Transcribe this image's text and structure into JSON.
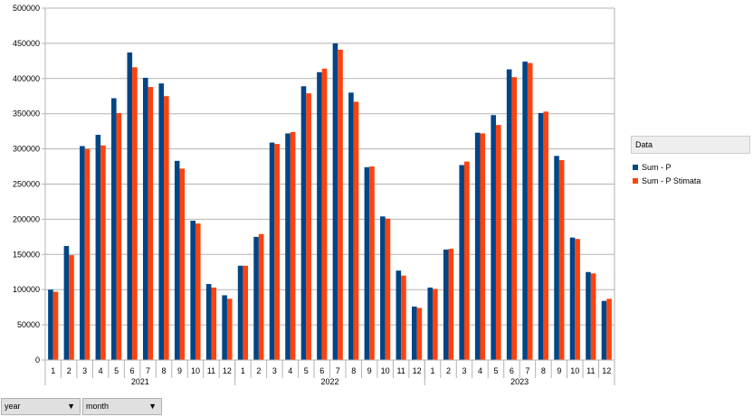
{
  "chart_data": {
    "type": "bar",
    "title": "",
    "xlabel": "",
    "ylabel": "",
    "ylim": [
      0,
      500000
    ],
    "y_ticks": [
      0,
      50000,
      100000,
      150000,
      200000,
      250000,
      300000,
      350000,
      400000,
      450000,
      500000
    ],
    "grid": true,
    "legend_position": "right",
    "legend_title": "Data",
    "groups": [
      {
        "label": "2021",
        "categories": [
          "1",
          "2",
          "3",
          "4",
          "5",
          "6",
          "7",
          "8",
          "9",
          "10",
          "11",
          "12"
        ]
      },
      {
        "label": "2022",
        "categories": [
          "1",
          "2",
          "3",
          "4",
          "5",
          "6",
          "7",
          "8",
          "9",
          "10",
          "11",
          "12"
        ]
      },
      {
        "label": "2023",
        "categories": [
          "1",
          "2",
          "3",
          "4",
          "5",
          "6",
          "7",
          "8",
          "9",
          "10",
          "11",
          "12"
        ]
      }
    ],
    "series": [
      {
        "name": "Sum - P",
        "color": "#004586",
        "values": [
          100000,
          162000,
          304000,
          320000,
          372000,
          437000,
          401000,
          393000,
          283000,
          198000,
          108000,
          92000,
          134000,
          175000,
          309000,
          322000,
          389000,
          409000,
          450000,
          380000,
          274000,
          204000,
          127000,
          76000,
          103000,
          157000,
          277000,
          323000,
          348000,
          413000,
          424000,
          351000,
          290000,
          174000,
          125000,
          84000
        ]
      },
      {
        "name": "Sum - P Stimata",
        "color": "#ff420e",
        "values": [
          97000,
          149000,
          300000,
          305000,
          351000,
          416000,
          388000,
          375000,
          272000,
          194000,
          103000,
          87000,
          134000,
          179000,
          307000,
          324000,
          379000,
          414000,
          441000,
          367000,
          275000,
          201000,
          120000,
          74000,
          101000,
          158000,
          282000,
          322000,
          334000,
          402000,
          422000,
          353000,
          284000,
          172000,
          123000,
          87000
        ]
      }
    ]
  },
  "field_buttons": [
    {
      "label": "year",
      "icon": "dropdown-arrow-icon"
    },
    {
      "label": "month",
      "icon": "dropdown-arrow-icon"
    }
  ]
}
